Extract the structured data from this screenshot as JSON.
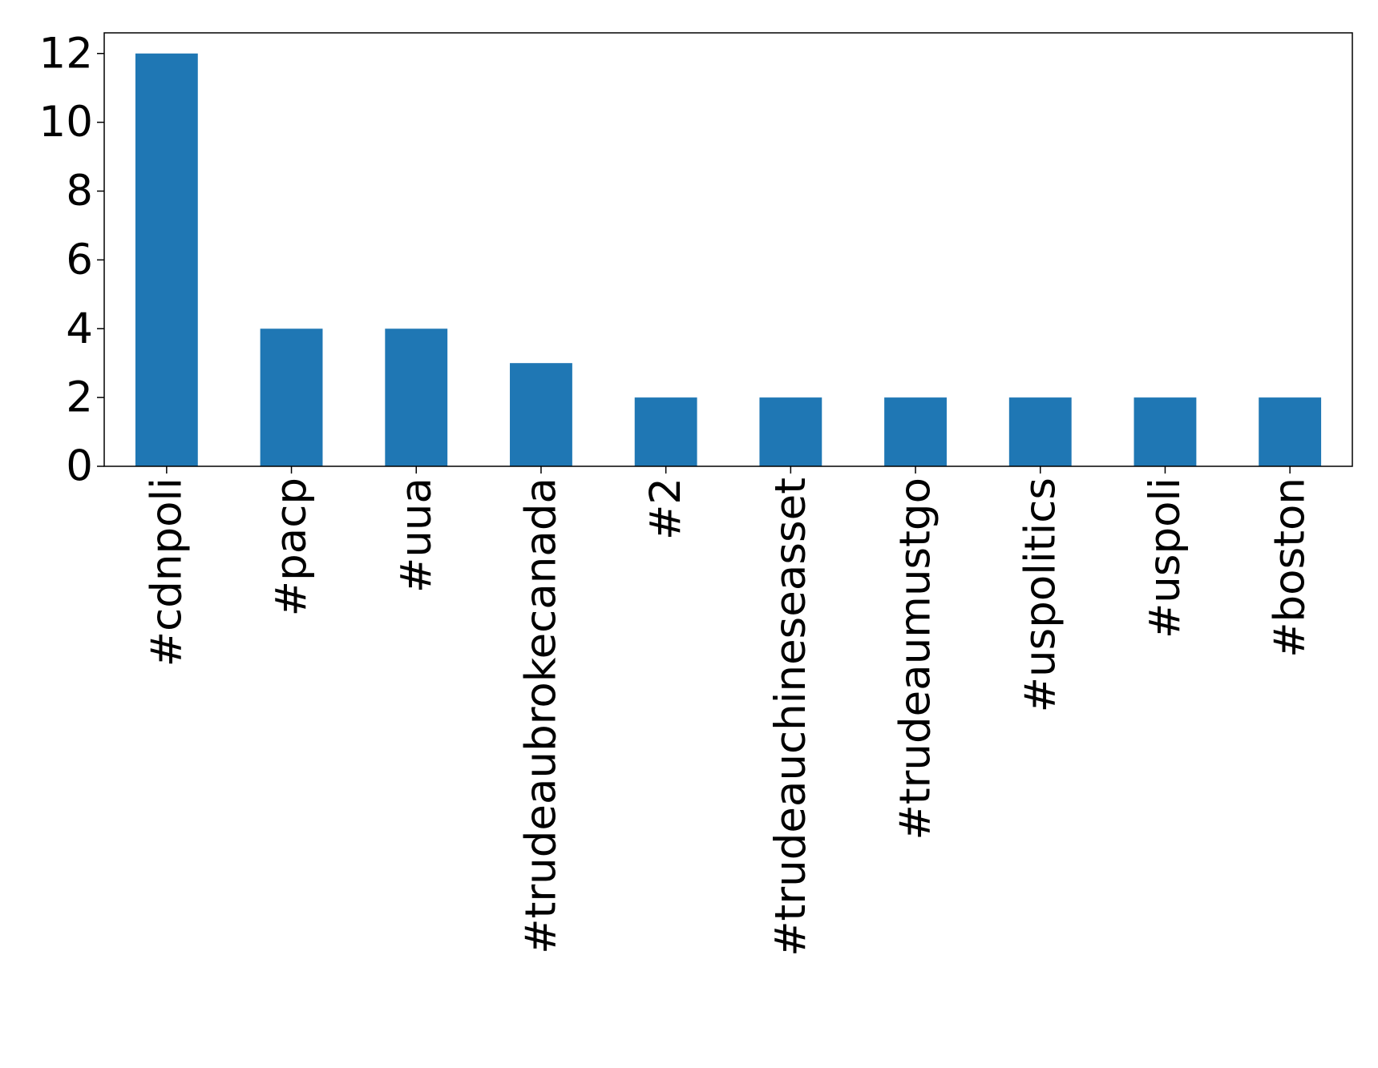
{
  "chart_data": {
    "type": "bar",
    "categories": [
      "#cdnpoli",
      "#pacp",
      "#uua",
      "#trudeaubrokecanada",
      "#2",
      "#trudeauchineseasset",
      "#trudeaumustgo",
      "#uspolitics",
      "#uspoli",
      "#boston"
    ],
    "values": [
      12,
      4,
      4,
      3,
      2,
      2,
      2,
      2,
      2,
      2
    ],
    "color": "#1f77b4",
    "ylim": [
      0,
      12.6
    ],
    "yticks": [
      0,
      2,
      4,
      6,
      8,
      10,
      12
    ],
    "grid": false
  }
}
